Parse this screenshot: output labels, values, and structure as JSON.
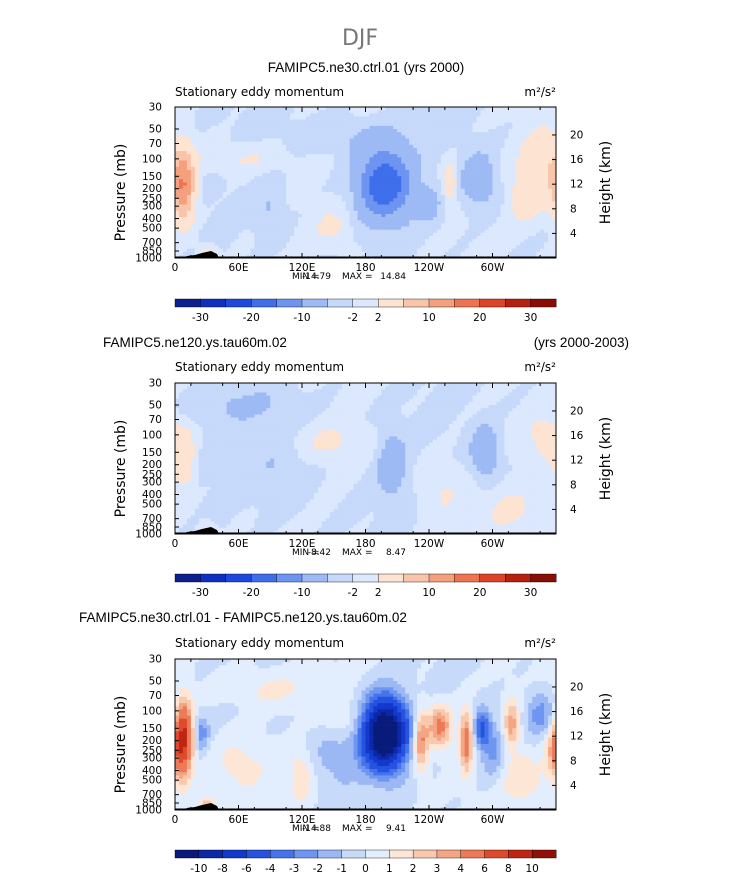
{
  "figure_title": "DJF",
  "chart_data": [
    {
      "type": "contour",
      "title": "FAMIPC5.ne30.ctrl.01 (yrs 2000)",
      "title_right": "",
      "subtitle_left": "Stationary eddy momentum",
      "units": "m²/s²",
      "ylabel": "Pressure (mb)",
      "ylabel_right": "Height (km)",
      "pressure_ticks": [
        "30",
        "50",
        "70",
        "100",
        "150",
        "200",
        "250",
        "300",
        "400",
        "500",
        "700",
        "850",
        "1000"
      ],
      "height_ticks": [
        "20",
        "16",
        "12",
        "8",
        "4"
      ],
      "x_ticks": [
        "0",
        "60E",
        "120E",
        "180",
        "120W",
        "60W"
      ],
      "min_label": "MIN =",
      "min_value": "-14.79",
      "max_label": "MAX =",
      "max_value": "14.84",
      "colorbar_labels": [
        "-30",
        "-20",
        "-10",
        "-2",
        "2",
        "10",
        "20",
        "30"
      ],
      "colorbar_colors": [
        "#0c1f8c",
        "#0e2fbf",
        "#1c48de",
        "#3e6eea",
        "#6c94f0",
        "#9dbaf5",
        "#c6d9fa",
        "#dbe8fd",
        "#fde3d2",
        "#f9c5aa",
        "#f5a07d",
        "#ee7350",
        "#de4326",
        "#b5200f",
        "#8a0d05"
      ],
      "blobs": [
        {
          "lon": 8,
          "p": 190,
          "amp": 14,
          "slon": 7,
          "sp": 0.55
        },
        {
          "lon": 198,
          "p": 180,
          "amp": -14,
          "slon": 17,
          "sp": 0.55
        },
        {
          "lon": 260,
          "p": 175,
          "amp": 5,
          "slon": 5,
          "sp": 0.35
        },
        {
          "lon": 287,
          "p": 165,
          "amp": -5,
          "slon": 12,
          "sp": 0.45
        },
        {
          "lon": 348,
          "p": 130,
          "amp": 5,
          "slon": 14,
          "sp": 0.6
        },
        {
          "lon": 330,
          "p": 250,
          "amp": 3,
          "slon": 10,
          "sp": 0.4
        },
        {
          "lon": 30,
          "p": 900,
          "amp": 4,
          "slon": 6,
          "sp": 0.15
        },
        {
          "lon": 150,
          "p": 500,
          "amp": 2.5,
          "slon": 12,
          "sp": 0.3
        },
        {
          "lon": 90,
          "p": 350,
          "amp": -2.5,
          "slon": 10,
          "sp": 0.5
        },
        {
          "lon": 240,
          "p": 280,
          "amp": -3,
          "slon": 8,
          "sp": 0.3
        },
        {
          "lon": 60,
          "p": 100,
          "amp": 2.5,
          "slon": 30,
          "sp": 0.25
        },
        {
          "lon": 170,
          "p": 60,
          "amp": -2.2,
          "slon": 40,
          "sp": 0.3
        }
      ]
    },
    {
      "type": "contour",
      "title": "FAMIPC5.ne120.ys.tau60m.02",
      "title_right": "(yrs 2000-2003)",
      "subtitle_left": "Stationary eddy momentum",
      "units": "m²/s²",
      "ylabel": "Pressure (mb)",
      "ylabel_right": "Height (km)",
      "pressure_ticks": [
        "30",
        "50",
        "70",
        "100",
        "150",
        "200",
        "250",
        "300",
        "400",
        "500",
        "700",
        "850",
        "1000"
      ],
      "height_ticks": [
        "20",
        "16",
        "12",
        "8",
        "4"
      ],
      "x_ticks": [
        "0",
        "60E",
        "120E",
        "180",
        "120W",
        "60W"
      ],
      "min_label": "MIN =",
      "min_value": "-8.42",
      "max_label": "MAX =",
      "max_value": "8.47",
      "colorbar_labels": [
        "-30",
        "-20",
        "-10",
        "-2",
        "2",
        "10",
        "20",
        "30"
      ],
      "colorbar_colors": [
        "#0c1f8c",
        "#0e2fbf",
        "#1c48de",
        "#3e6eea",
        "#6c94f0",
        "#9dbaf5",
        "#c6d9fa",
        "#dbe8fd",
        "#fde3d2",
        "#f9c5aa",
        "#f5a07d",
        "#ee7350",
        "#de4326",
        "#b5200f",
        "#8a0d05"
      ],
      "blobs": [
        {
          "lon": 8,
          "p": 180,
          "amp": 5,
          "slon": 7,
          "sp": 0.5
        },
        {
          "lon": 205,
          "p": 200,
          "amp": -5,
          "slon": 9,
          "sp": 0.5
        },
        {
          "lon": 293,
          "p": 150,
          "amp": -6.5,
          "slon": 9,
          "sp": 0.4
        },
        {
          "lon": 350,
          "p": 105,
          "amp": 3,
          "slon": 12,
          "sp": 0.4
        },
        {
          "lon": 30,
          "p": 900,
          "amp": 3,
          "slon": 6,
          "sp": 0.15
        },
        {
          "lon": 100,
          "p": 250,
          "amp": -2.2,
          "slon": 20,
          "sp": 0.6
        },
        {
          "lon": 150,
          "p": 120,
          "amp": 2.2,
          "slon": 25,
          "sp": 0.3
        },
        {
          "lon": 250,
          "p": 350,
          "amp": 2.2,
          "slon": 15,
          "sp": 0.5
        },
        {
          "lon": 60,
          "p": 50,
          "amp": -2.2,
          "slon": 40,
          "sp": 0.3
        },
        {
          "lon": 320,
          "p": 600,
          "amp": 2.2,
          "slon": 20,
          "sp": 0.4
        }
      ]
    },
    {
      "type": "contour",
      "title": "FAMIPC5.ne30.ctrl.01 - FAMIPC5.ne120.ys.tau60m.02",
      "title_right": "",
      "subtitle_left": "Stationary eddy momentum",
      "units": "m²/s²",
      "ylabel": "Pressure (mb)",
      "ylabel_right": "Height (km)",
      "pressure_ticks": [
        "30",
        "50",
        "70",
        "100",
        "150",
        "200",
        "250",
        "300",
        "400",
        "500",
        "700",
        "850",
        "1000"
      ],
      "height_ticks": [
        "20",
        "16",
        "12",
        "8",
        "4"
      ],
      "x_ticks": [
        "0",
        "60E",
        "120E",
        "180",
        "120W",
        "60W"
      ],
      "min_label": "MIN =",
      "min_value": "-14.88",
      "max_label": "MAX =",
      "max_value": "9.41",
      "colorbar_labels": [
        "-10",
        "-8",
        "-6",
        "-4",
        "-3",
        "-2",
        "-1",
        "0",
        "1",
        "2",
        "3",
        "4",
        "6",
        "8",
        "10"
      ],
      "colorbar_colors": [
        "#081a7a",
        "#0c27a8",
        "#1239cc",
        "#2552e0",
        "#4573ea",
        "#6e96f0",
        "#9bb8f5",
        "#c8dafa",
        "#e2edfd",
        "#fde6d6",
        "#f9c8ad",
        "#f4a584",
        "#ed7a57",
        "#de4a2c",
        "#bf2512",
        "#900f06"
      ],
      "blobs": [
        {
          "lon": 8,
          "p": 190,
          "amp": 8.5,
          "slon": 6,
          "sp": 0.6
        },
        {
          "lon": 198,
          "p": 170,
          "amp": -14.5,
          "slon": 14,
          "sp": 0.55
        },
        {
          "lon": 232,
          "p": 200,
          "amp": 4.5,
          "slon": 5,
          "sp": 0.5
        },
        {
          "lon": 250,
          "p": 145,
          "amp": 4.5,
          "slon": 8,
          "sp": 0.35
        },
        {
          "lon": 275,
          "p": 200,
          "amp": 5,
          "slon": 4,
          "sp": 0.5
        },
        {
          "lon": 290,
          "p": 150,
          "amp": -4,
          "slon": 5,
          "sp": 0.3
        },
        {
          "lon": 300,
          "p": 240,
          "amp": -2.5,
          "slon": 8,
          "sp": 0.5
        },
        {
          "lon": 318,
          "p": 140,
          "amp": 3.5,
          "slon": 5,
          "sp": 0.4
        },
        {
          "lon": 345,
          "p": 110,
          "amp": -2.5,
          "slon": 10,
          "sp": 0.4
        },
        {
          "lon": 358,
          "p": 260,
          "amp": 3,
          "slon": 6,
          "sp": 0.4
        },
        {
          "lon": 25,
          "p": 170,
          "amp": -2.5,
          "slon": 5,
          "sp": 0.3
        },
        {
          "lon": 30,
          "p": 900,
          "amp": 3,
          "slon": 6,
          "sp": 0.15
        },
        {
          "lon": 120,
          "p": 450,
          "amp": 2.2,
          "slon": 8,
          "sp": 0.4
        },
        {
          "lon": 60,
          "p": 350,
          "amp": 1.5,
          "slon": 20,
          "sp": 0.5
        },
        {
          "lon": 150,
          "p": 300,
          "amp": -1.5,
          "slon": 20,
          "sp": 0.6
        },
        {
          "lon": 90,
          "p": 60,
          "amp": 1.3,
          "slon": 30,
          "sp": 0.3
        },
        {
          "lon": 160,
          "p": 120,
          "amp": 1.3,
          "slon": 15,
          "sp": 0.3
        },
        {
          "lon": 330,
          "p": 500,
          "amp": 1.8,
          "slon": 15,
          "sp": 0.4
        }
      ]
    }
  ]
}
